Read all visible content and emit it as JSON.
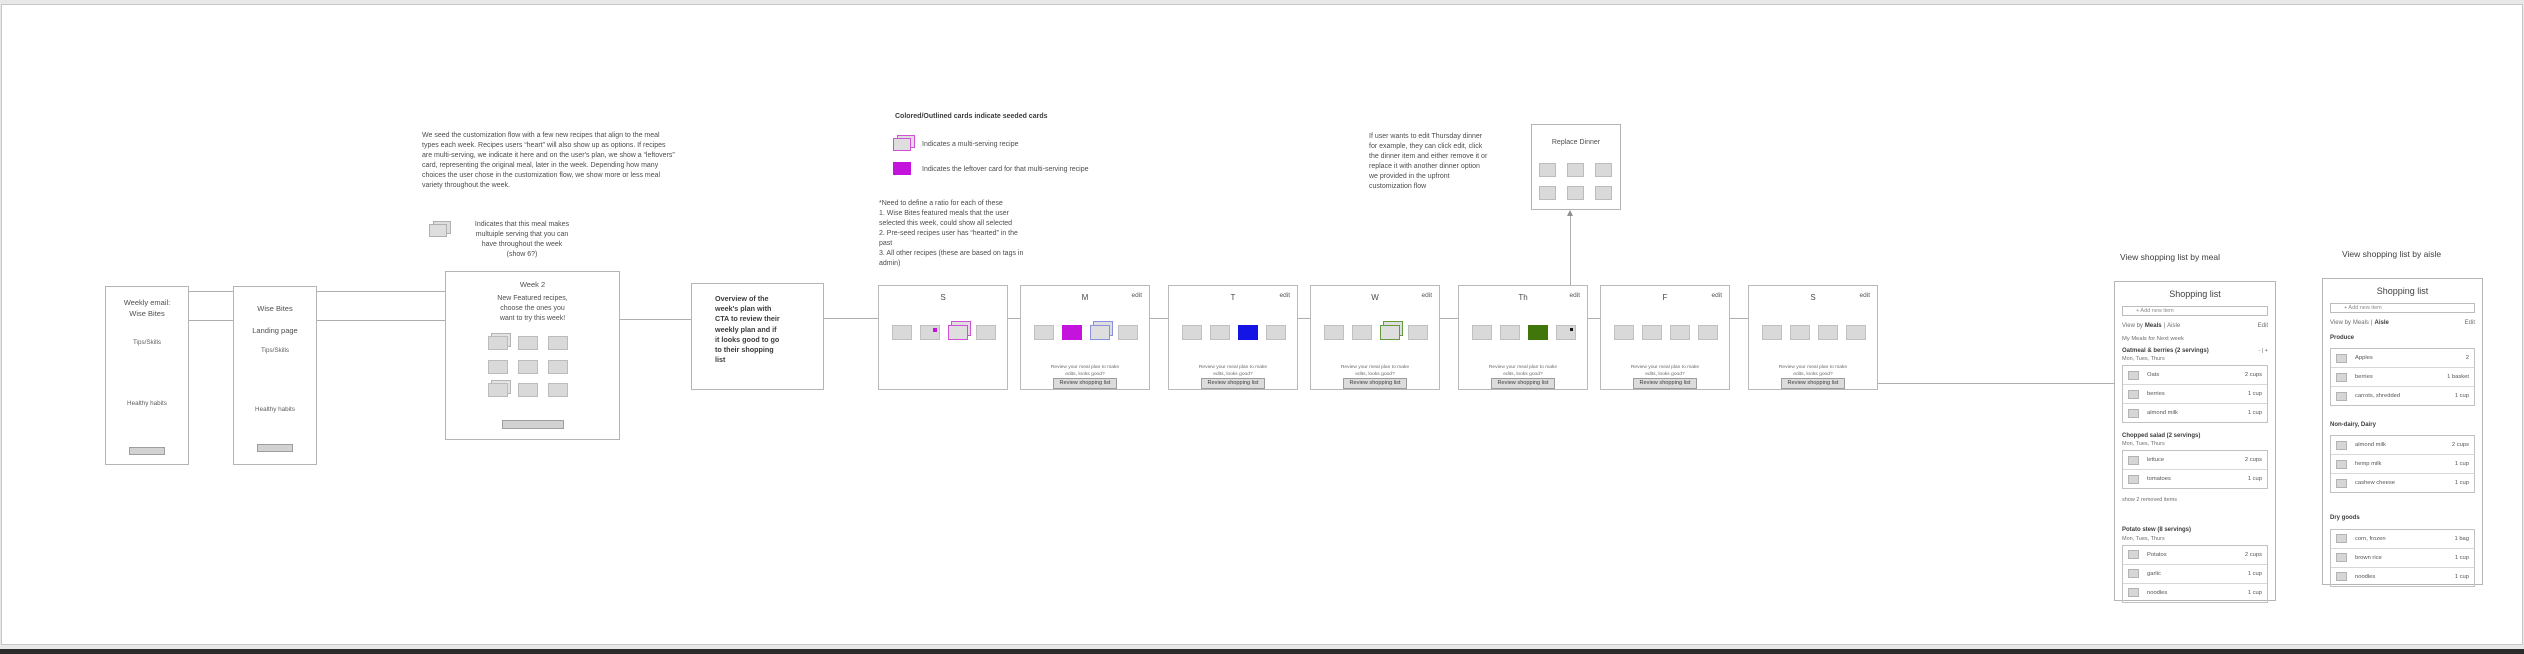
{
  "canvas": {
    "email_box": {
      "title": "Weekly email:\nWise Bites",
      "tips": "Tips/Skills",
      "habits": "Healthy habits"
    },
    "landing_box": {
      "title1": "Wise Bites",
      "title2": "Landing page",
      "tips": "Tips/Skills",
      "habits": "Healthy habits"
    },
    "week2_box": {
      "title": "Week 2",
      "subtitle": "New Featured recipes,\nchoose the ones you\nwant to try this week!"
    },
    "overview_box": {
      "text": "Overview of the\nweek's plan with\nCTA to review their\nweekly plan and if\nit looks good to go\nto their shopping\nlist"
    },
    "seed_note": "We seed the customization flow with a few new recipes that align to the meal\ntypes each week. Recipes users “heart” will also show up as options. If recipes\nare multi-serving, we indicate it here and on the user's plan, we show a “leftovers”\ncard, representing the original meal, later in the week. Depending how many\nchoices the user chose in the customization flow, we show more or less meal\nvariety throughout the week.",
    "multi_note": "Indicates that this meal makes\nmultuiple serving that you can\nhave throughout the week\n(show 6?)",
    "legend": {
      "title": "Colored/Outlined cards indicate seeded cards",
      "multi": "Indicates a multi-serving recipe",
      "leftover": "Indicates the leftover card for that multi-serving recipe"
    },
    "ratio_note": "*Need to define a ratio for each of these\n1. Wise Bites featured meals that the user\nselected this week, could show all selected\n2. Pre-seed recipes user has “hearted” in the\npast\n3. All other recipes (these are based on tags in\nadmin)",
    "edit_note": "If user wants to edit Thursday dinner\nfor example, they can click edit, click\nthe dinner item and either remove it or\nreplace it with another dinner option\nwe provided in the upfront\ncustomization flow",
    "replace_dinner": {
      "title": "Replace Dinner"
    }
  },
  "week": {
    "edit_label": "edit",
    "review_text": "Review your meal plan to make\nedits, looks good?",
    "review_button": "Review shopping list",
    "days": [
      {
        "label": "S",
        "edit": false,
        "review": false,
        "slots": [
          "plain",
          "dot-magenta",
          "stack-magenta",
          "plain"
        ]
      },
      {
        "label": "M",
        "edit": true,
        "review": true,
        "slots": [
          "plain",
          "solid-magenta",
          "stack-blue",
          "plain"
        ]
      },
      {
        "label": "T",
        "edit": true,
        "review": true,
        "slots": [
          "plain",
          "plain",
          "solid-blue",
          "plain"
        ]
      },
      {
        "label": "W",
        "edit": true,
        "review": true,
        "slots": [
          "plain",
          "plain",
          "stack-green",
          "plain"
        ]
      },
      {
        "label": "Th",
        "edit": true,
        "review": true,
        "slots": [
          "plain",
          "plain",
          "solid-green",
          "dot-black"
        ]
      },
      {
        "label": "F",
        "edit": true,
        "review": true,
        "slots": [
          "plain",
          "plain",
          "plain",
          "plain"
        ]
      },
      {
        "label": "S",
        "edit": true,
        "review": true,
        "slots": [
          "plain",
          "plain",
          "plain",
          "plain"
        ]
      }
    ]
  },
  "colors": {
    "magenta": "#c313dc",
    "magenta_outline": "#d24fd8",
    "blue": "#1415e4",
    "blue_outline": "#8791de",
    "green": "#41770a",
    "green_outline": "#669a3f",
    "dot_black": "#1a1a1a",
    "card_gray": "#d9d9d9"
  },
  "shopping_by_meal": {
    "heading": "View shopping list by meal",
    "title": "Shopping list",
    "add_placeholder": "+ Add new item",
    "view_by": "View by",
    "meals": "Meals",
    "divider": "|",
    "aisle": "Aisle",
    "edit": "Edit",
    "subtitle": "My Meals for Next week",
    "sections": [
      {
        "name": "Oatmeal & berries (2 servings)",
        "days": "Mon, Tues, Thurs",
        "stepper": "- | +",
        "items": [
          {
            "name": "Oats",
            "qty": "2 cups"
          },
          {
            "name": "berries",
            "qty": "1 cup"
          },
          {
            "name": "almond milk",
            "qty": "1 cup"
          }
        ]
      },
      {
        "name": "Chopped salad (2 servings)",
        "days": "Mon, Tues, Thurs",
        "footer": "show 2 removed items",
        "items": [
          {
            "name": "lettuce",
            "qty": "2 cups"
          },
          {
            "name": "tomatoes",
            "qty": "1 cup"
          }
        ]
      },
      {
        "name": "Potato stew (8 servings)",
        "days": "Mon, Tues, Thurs",
        "items": [
          {
            "name": "Potatos",
            "qty": "2 cups"
          },
          {
            "name": "garlic",
            "qty": "1 cup"
          },
          {
            "name": "noodles",
            "qty": "1 cup"
          }
        ]
      }
    ]
  },
  "shopping_by_aisle": {
    "heading": "View shopping list by aisle",
    "title": "Shopping list",
    "add_placeholder": "+ Add new item",
    "view_by": "View by",
    "meals": "Meals",
    "divider": "|",
    "aisle": "Aisle",
    "edit": "Edit",
    "sections": [
      {
        "name": "Produce",
        "items": [
          {
            "name": "Apples",
            "qty": "2"
          },
          {
            "name": "berries",
            "qty": "1 basket"
          },
          {
            "name": "carrots, shredded",
            "qty": "1 cup"
          }
        ]
      },
      {
        "name": "Non-dairy, Dairy",
        "items": [
          {
            "name": "almond milk",
            "qty": "2 cups"
          },
          {
            "name": "hemp milk",
            "qty": "1 cup"
          },
          {
            "name": "cashew cheese",
            "qty": "1 cup"
          }
        ]
      },
      {
        "name": "Dry goods",
        "items": [
          {
            "name": "corn, frozen",
            "qty": "1 bag"
          },
          {
            "name": "brown rice",
            "qty": "1 cup"
          },
          {
            "name": "noodles",
            "qty": "1 cup"
          }
        ]
      }
    ]
  }
}
